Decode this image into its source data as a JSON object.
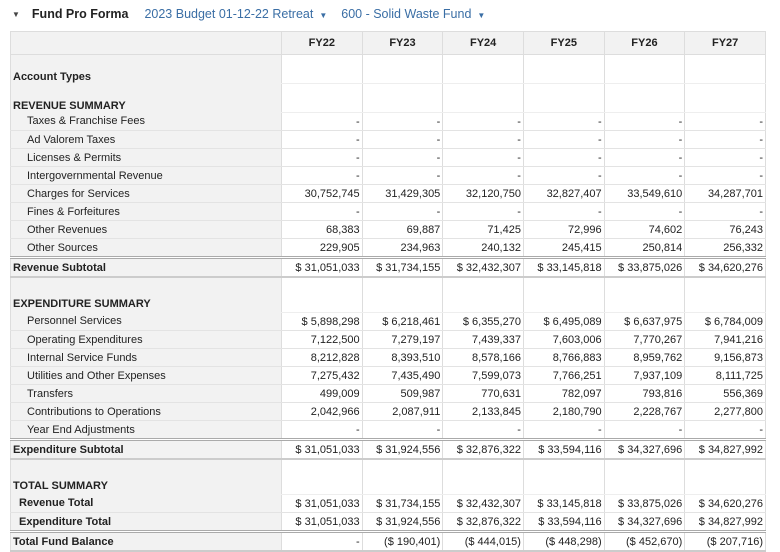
{
  "header": {
    "title": "Fund Pro Forma",
    "budget": "2023 Budget 01-12-22 Retreat",
    "fund": "600 - Solid Waste Fund"
  },
  "columns": [
    "FY22",
    "FY23",
    "FY24",
    "FY25",
    "FY26",
    "FY27"
  ],
  "rows": [
    {
      "type": "head tall",
      "label": "Account Types",
      "values": [
        "",
        "",
        "",
        "",
        "",
        ""
      ]
    },
    {
      "type": "head tall",
      "label": "REVENUE SUMMARY",
      "values": [
        "",
        "",
        "",
        "",
        "",
        ""
      ]
    },
    {
      "type": "item",
      "label": "Taxes & Franchise Fees",
      "values": [
        "-",
        "-",
        "-",
        "-",
        "-",
        "-"
      ]
    },
    {
      "type": "item",
      "label": "Ad Valorem Taxes",
      "values": [
        "-",
        "-",
        "-",
        "-",
        "-",
        "-"
      ]
    },
    {
      "type": "item",
      "label": "Licenses & Permits",
      "values": [
        "-",
        "-",
        "-",
        "-",
        "-",
        "-"
      ]
    },
    {
      "type": "item",
      "label": "Intergovernmental Revenue",
      "values": [
        "-",
        "-",
        "-",
        "-",
        "-",
        "-"
      ]
    },
    {
      "type": "item",
      "label": "Charges for Services",
      "values": [
        "30,752,745",
        "31,429,305",
        "32,120,750",
        "32,827,407",
        "33,549,610",
        "34,287,701"
      ]
    },
    {
      "type": "item",
      "label": "Fines & Forfeitures",
      "values": [
        "-",
        "-",
        "-",
        "-",
        "-",
        "-"
      ]
    },
    {
      "type": "item",
      "label": "Other Revenues",
      "values": [
        "68,383",
        "69,887",
        "71,425",
        "72,996",
        "74,602",
        "76,243"
      ]
    },
    {
      "type": "item",
      "label": "Other Sources",
      "values": [
        "229,905",
        "234,963",
        "240,132",
        "245,415",
        "250,814",
        "256,332"
      ]
    },
    {
      "type": "sub",
      "label": "Revenue Subtotal",
      "values": [
        "$ 31,051,033",
        "$ 31,734,155",
        "$ 32,432,307",
        "$ 33,145,818",
        "$ 33,875,026",
        "$ 34,620,276"
      ]
    },
    {
      "type": "spacer",
      "label": "",
      "values": [
        "",
        "",
        "",
        "",
        "",
        ""
      ]
    },
    {
      "type": "head",
      "label": "EXPENDITURE SUMMARY",
      "values": [
        "",
        "",
        "",
        "",
        "",
        ""
      ]
    },
    {
      "type": "item",
      "label": "Personnel Services",
      "values": [
        "$ 5,898,298",
        "$ 6,218,461",
        "$ 6,355,270",
        "$ 6,495,089",
        "$ 6,637,975",
        "$ 6,784,009"
      ]
    },
    {
      "type": "item",
      "label": "Operating Expenditures",
      "values": [
        "7,122,500",
        "7,279,197",
        "7,439,337",
        "7,603,006",
        "7,770,267",
        "7,941,216"
      ]
    },
    {
      "type": "item",
      "label": "Internal Service Funds",
      "values": [
        "8,212,828",
        "8,393,510",
        "8,578,166",
        "8,766,883",
        "8,959,762",
        "9,156,873"
      ]
    },
    {
      "type": "item",
      "label": "Utilities and Other Expenses",
      "values": [
        "7,275,432",
        "7,435,490",
        "7,599,073",
        "7,766,251",
        "7,937,109",
        "8,111,725"
      ]
    },
    {
      "type": "item",
      "label": "Transfers",
      "values": [
        "499,009",
        "509,987",
        "770,631",
        "782,097",
        "793,816",
        "556,369"
      ]
    },
    {
      "type": "item",
      "label": "Contributions to Operations",
      "values": [
        "2,042,966",
        "2,087,911",
        "2,133,845",
        "2,180,790",
        "2,228,767",
        "2,277,800"
      ]
    },
    {
      "type": "item",
      "label": "Year End Adjustments",
      "values": [
        "-",
        "-",
        "-",
        "-",
        "-",
        "-"
      ]
    },
    {
      "type": "sub",
      "label": "Expenditure Subtotal",
      "values": [
        "$ 31,051,033",
        "$ 31,924,556",
        "$ 32,876,322",
        "$ 33,594,116",
        "$ 34,327,696",
        "$ 34,827,992"
      ]
    },
    {
      "type": "spacer",
      "label": "",
      "values": [
        "",
        "",
        "",
        "",
        "",
        ""
      ]
    },
    {
      "type": "head",
      "label": "TOTAL SUMMARY",
      "values": [
        "",
        "",
        "",
        "",
        "",
        ""
      ]
    },
    {
      "type": "tot",
      "label": "Revenue Total",
      "values": [
        "$ 31,051,033",
        "$ 31,734,155",
        "$ 32,432,307",
        "$ 33,145,818",
        "$ 33,875,026",
        "$ 34,620,276"
      ]
    },
    {
      "type": "tot",
      "label": "Expenditure Total",
      "values": [
        "$ 31,051,033",
        "$ 31,924,556",
        "$ 32,876,322",
        "$ 33,594,116",
        "$ 34,327,696",
        "$ 34,827,992"
      ]
    },
    {
      "type": "totfb",
      "label": "Total Fund Balance",
      "values": [
        "-",
        "($ 190,401)",
        "($ 444,015)",
        "($ 448,298)",
        "($ 452,670)",
        "($ 207,716)"
      ]
    }
  ],
  "icons": {
    "collapse": "triangle-down",
    "dropdown": "caret-down"
  }
}
